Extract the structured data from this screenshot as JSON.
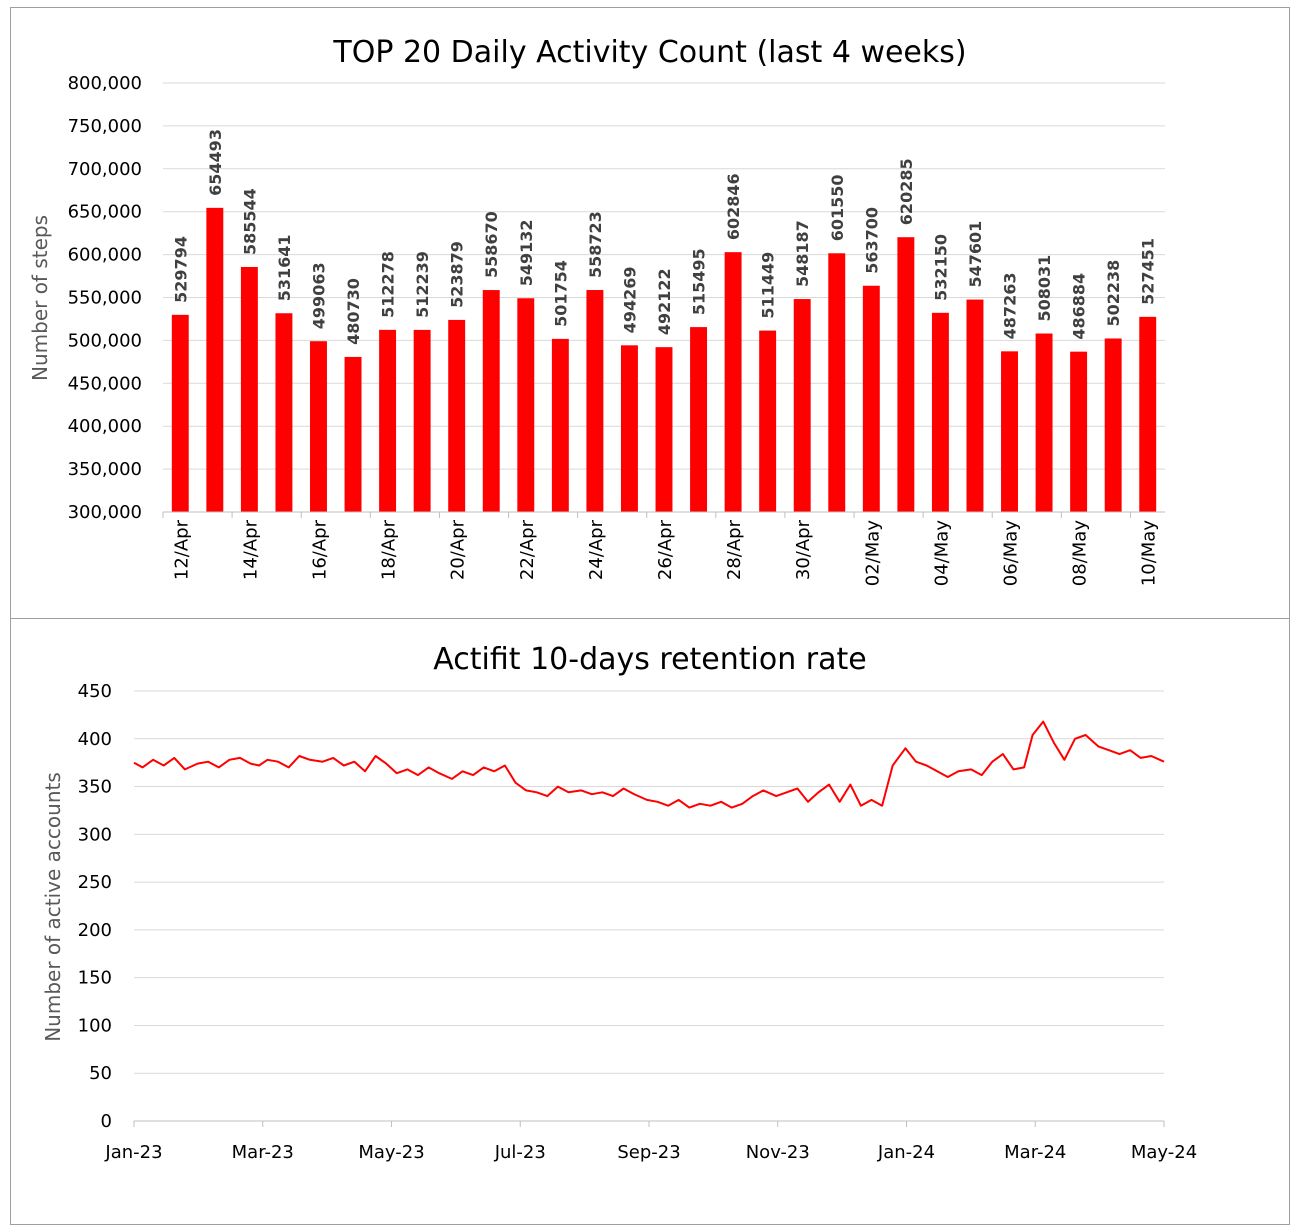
{
  "colors": {
    "series": "#ff0000",
    "grid": "#d9d9d9",
    "axis": "#bfbfbf",
    "axis_title": "#595959"
  },
  "chart_data": [
    {
      "type": "bar",
      "title": "TOP 20 Daily Activity Count (last 4 weeks)",
      "xlabel": "",
      "ylabel": "Number of steps",
      "ylim": [
        300000,
        800000
      ],
      "yticks": [
        "300,000",
        "350,000",
        "400,000",
        "450,000",
        "500,000",
        "550,000",
        "600,000",
        "650,000",
        "700,000",
        "750,000",
        "800,000"
      ],
      "grid": true,
      "legend": "none",
      "categories": [
        "12/Apr",
        "13/Apr",
        "14/Apr",
        "15/Apr",
        "16/Apr",
        "17/Apr",
        "18/Apr",
        "19/Apr",
        "20/Apr",
        "21/Apr",
        "22/Apr",
        "23/Apr",
        "24/Apr",
        "25/Apr",
        "26/Apr",
        "27/Apr",
        "28/Apr",
        "29/Apr",
        "30/Apr",
        "01/May",
        "02/May",
        "03/May",
        "04/May",
        "05/May",
        "06/May",
        "07/May",
        "08/May",
        "09/May",
        "10/May"
      ],
      "tick_labels": [
        "12/Apr",
        "14/Apr",
        "16/Apr",
        "18/Apr",
        "20/Apr",
        "22/Apr",
        "24/Apr",
        "26/Apr",
        "28/Apr",
        "30/Apr",
        "02/May",
        "04/May",
        "06/May",
        "08/May",
        "10/May"
      ],
      "values": [
        529794,
        654493,
        585544,
        531641,
        499063,
        480730,
        512278,
        512239,
        523879,
        558670,
        549132,
        501754,
        558723,
        494269,
        492122,
        515495,
        602846,
        511449,
        548187,
        601550,
        563700,
        620285,
        532150,
        547601,
        487263,
        508031,
        486884,
        502238,
        527451
      ],
      "data_labels": [
        "529794",
        "654493",
        "585544",
        "531641",
        "499063",
        "480730",
        "512278",
        "512239",
        "523879",
        "558670",
        "549132",
        "501754",
        "558723",
        "494269",
        "492122",
        "515495",
        "602846",
        "511449",
        "548187",
        "601550",
        "563700",
        "620285",
        "532150",
        "547601",
        "487263",
        "508031",
        "486884",
        "502238",
        "527451"
      ]
    },
    {
      "type": "line",
      "title": "Actifit 10-days retention rate",
      "xlabel": "",
      "ylabel": "Number of active accounts",
      "ylim": [
        0,
        450
      ],
      "yticks": [
        "0",
        "50",
        "100",
        "150",
        "200",
        "250",
        "300",
        "350",
        "400",
        "450"
      ],
      "xlim": [
        "2023-01-01",
        "2024-05-01"
      ],
      "xticks": [
        "Jan-23",
        "Mar-23",
        "May-23",
        "Jul-23",
        "Sep-23",
        "Nov-23",
        "Jan-24",
        "Mar-24",
        "May-24"
      ],
      "grid": true,
      "legend": "none",
      "series": [
        {
          "x": [
            "2023-01-01",
            "2023-01-05",
            "2023-01-10",
            "2023-01-15",
            "2023-01-20",
            "2023-01-25",
            "2023-01-31",
            "2023-02-05",
            "2023-02-10",
            "2023-02-15",
            "2023-02-20",
            "2023-02-25",
            "2023-03-01",
            "2023-03-05",
            "2023-03-10",
            "2023-03-15",
            "2023-03-20",
            "2023-03-25",
            "2023-03-31",
            "2023-04-05",
            "2023-04-10",
            "2023-04-15",
            "2023-04-20",
            "2023-04-25",
            "2023-04-30",
            "2023-05-05",
            "2023-05-10",
            "2023-05-15",
            "2023-05-20",
            "2023-05-25",
            "2023-05-31",
            "2023-06-05",
            "2023-06-10",
            "2023-06-15",
            "2023-06-20",
            "2023-06-25",
            "2023-06-30",
            "2023-07-05",
            "2023-07-10",
            "2023-07-15",
            "2023-07-20",
            "2023-07-25",
            "2023-07-31",
            "2023-08-05",
            "2023-08-10",
            "2023-08-15",
            "2023-08-20",
            "2023-08-25",
            "2023-08-31",
            "2023-09-05",
            "2023-09-10",
            "2023-09-15",
            "2023-09-20",
            "2023-09-25",
            "2023-09-30",
            "2023-10-05",
            "2023-10-10",
            "2023-10-15",
            "2023-10-20",
            "2023-10-25",
            "2023-10-31",
            "2023-11-05",
            "2023-11-10",
            "2023-11-15",
            "2023-11-20",
            "2023-11-25",
            "2023-11-30",
            "2023-12-05",
            "2023-12-10",
            "2023-12-15",
            "2023-12-20",
            "2023-12-25",
            "2023-12-31",
            "2024-01-05",
            "2024-01-10",
            "2024-01-15",
            "2024-01-20",
            "2024-01-25",
            "2024-01-31",
            "2024-02-05",
            "2024-02-10",
            "2024-02-15",
            "2024-02-20",
            "2024-02-25",
            "2024-02-29",
            "2024-03-05",
            "2024-03-10",
            "2024-03-15",
            "2024-03-20",
            "2024-03-25",
            "2024-03-31",
            "2024-04-05",
            "2024-04-10",
            "2024-04-15",
            "2024-04-20",
            "2024-04-25",
            "2024-05-01"
          ],
          "y": [
            375,
            370,
            378,
            372,
            380,
            368,
            374,
            376,
            370,
            378,
            380,
            374,
            372,
            378,
            376,
            370,
            382,
            378,
            376,
            380,
            372,
            376,
            366,
            382,
            374,
            364,
            368,
            362,
            370,
            364,
            358,
            366,
            362,
            370,
            366,
            372,
            354,
            346,
            344,
            340,
            350,
            344,
            346,
            342,
            344,
            340,
            348,
            342,
            336,
            334,
            330,
            336,
            328,
            332,
            330,
            334,
            328,
            332,
            340,
            346,
            340,
            344,
            348,
            334,
            344,
            352,
            334,
            352,
            330,
            336,
            330,
            372,
            390,
            376,
            372,
            366,
            360,
            366,
            368,
            362,
            376,
            384,
            368,
            370,
            404,
            418,
            396,
            378,
            400,
            404,
            392,
            388,
            384,
            388,
            380,
            382,
            376
          ]
        }
      ]
    }
  ]
}
